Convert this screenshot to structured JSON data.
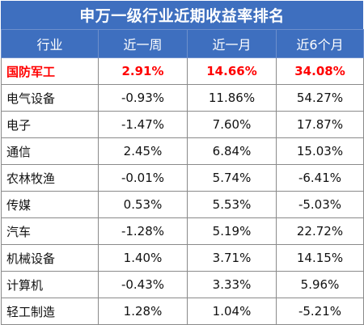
{
  "title": "申万一级行业近期收益率排名",
  "headers": [
    "行业",
    "近一周",
    "近一月",
    "近6个月"
  ],
  "colors": {
    "header_bg": "#3e6fbf",
    "header_text": "#ffffff",
    "highlight_text": "#ff0000",
    "border": "#8a8a8a"
  },
  "rows": [
    {
      "industry": "国防军工",
      "week": "2.91%",
      "month": "14.66%",
      "half_year": "34.08%",
      "highlight": true
    },
    {
      "industry": "电气设备",
      "week": "-0.93%",
      "month": "11.86%",
      "half_year": "54.27%",
      "highlight": false
    },
    {
      "industry": "电子",
      "week": "-1.47%",
      "month": "7.60%",
      "half_year": "17.87%",
      "highlight": false
    },
    {
      "industry": "通信",
      "week": "2.45%",
      "month": "6.84%",
      "half_year": "15.03%",
      "highlight": false
    },
    {
      "industry": "农林牧渔",
      "week": "-0.01%",
      "month": "5.74%",
      "half_year": "-6.41%",
      "highlight": false
    },
    {
      "industry": "传媒",
      "week": "0.53%",
      "month": "5.53%",
      "half_year": "-5.03%",
      "highlight": false
    },
    {
      "industry": "汽车",
      "week": "-1.28%",
      "month": "5.19%",
      "half_year": "22.72%",
      "highlight": false
    },
    {
      "industry": "机械设备",
      "week": "1.40%",
      "month": "3.71%",
      "half_year": "14.15%",
      "highlight": false
    },
    {
      "industry": "计算机",
      "week": "-0.43%",
      "month": "3.33%",
      "half_year": "5.96%",
      "highlight": false
    },
    {
      "industry": "轻工制造",
      "week": "1.28%",
      "month": "1.04%",
      "half_year": "-5.21%",
      "highlight": false
    }
  ]
}
